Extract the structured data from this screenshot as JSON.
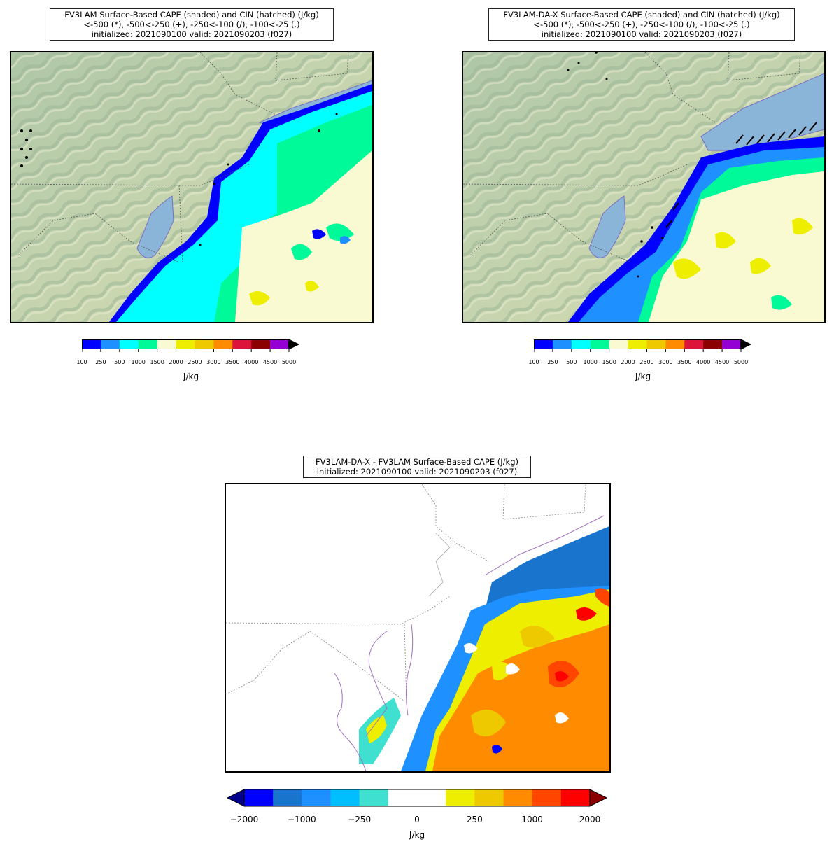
{
  "panels": [
    {
      "id": "fv3lam",
      "title_lines": [
        "FV3LAM Surface-Based CAPE (shaded) and CIN (hatched) (J/kg)",
        "<-500 (*), -500<-250 (+), -250<-100 (/), -100<-25 (.)",
        "initialized: 2021090100 valid: 2021090203 (f027)"
      ],
      "colorbar": {
        "ticks": [
          "100",
          "250",
          "500",
          "1000",
          "1500",
          "2000",
          "2500",
          "3000",
          "3500",
          "4000",
          "4500",
          "5000"
        ],
        "colors": [
          "#0000ff",
          "#1e90ff",
          "#00ffff",
          "#00fa9a",
          "#fafad2",
          "#eeee00",
          "#eec900",
          "#ff8c00",
          "#dc143c",
          "#8b0000",
          "#9400d3"
        ],
        "extend_color": "#000000",
        "label": "J/kg"
      }
    },
    {
      "id": "fv3lam-da-x",
      "title_lines": [
        "FV3LAM-DA-X Surface-Based CAPE (shaded) and CIN (hatched) (J/kg)",
        "<-500 (*), -500<-250 (+), -250<-100 (/), -100<-25 (.)",
        "initialized: 2021090100 valid: 2021090203 (f027)"
      ],
      "colorbar": {
        "ticks": [
          "100",
          "250",
          "500",
          "1000",
          "1500",
          "2000",
          "2500",
          "3000",
          "3500",
          "4000",
          "4500",
          "5000"
        ],
        "colors": [
          "#0000ff",
          "#1e90ff",
          "#00ffff",
          "#00fa9a",
          "#fafad2",
          "#eeee00",
          "#eec900",
          "#ff8c00",
          "#dc143c",
          "#8b0000",
          "#9400d3"
        ],
        "extend_color": "#000000",
        "label": "J/kg"
      }
    },
    {
      "id": "difference",
      "title_lines": [
        "FV3LAM-DA-X - FV3LAM Surface-Based CAPE (J/kg)",
        "initialized: 2021090100 valid: 2021090203 (f027)"
      ],
      "colorbar": {
        "ticks": [
          "−2000",
          "−1000",
          "−250",
          "0",
          "250",
          "1000",
          "2000"
        ],
        "colors": [
          "#0000ff",
          "#1874cd",
          "#1e90ff",
          "#00bfff",
          "#40e0d0",
          "#ffffff",
          "#ffffff",
          "#eeee00",
          "#eec900",
          "#ff8c00",
          "#ff4500",
          "#ff0000"
        ],
        "extend_low_color": "#00008b",
        "extend_high_color": "#8b0000",
        "label": "J/kg"
      }
    }
  ]
}
